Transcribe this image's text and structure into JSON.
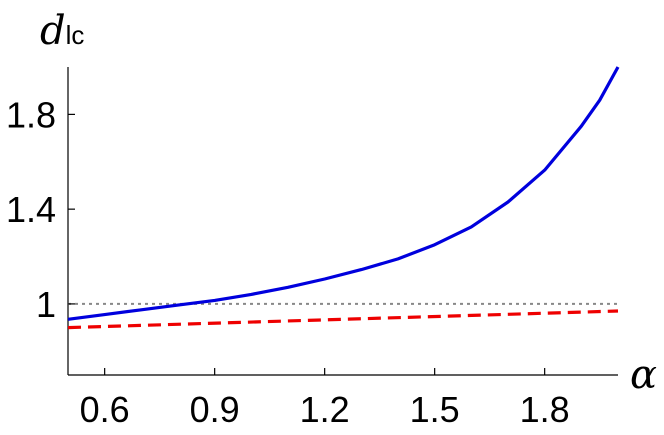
{
  "chart_data": {
    "type": "line",
    "title": "",
    "xlabel": "α",
    "ylabel_main": "d",
    "ylabel_sub": "lc",
    "xlim": [
      0.5,
      2.0
    ],
    "ylim": [
      0.7,
      2.0
    ],
    "x_ticks": [
      0.6,
      0.9,
      1.2,
      1.5,
      1.8
    ],
    "x_tick_labels": [
      "0.6",
      "0.9",
      "1.2",
      "1.5",
      "1.8"
    ],
    "y_ticks": [
      1.0,
      1.4,
      1.8
    ],
    "y_tick_labels": [
      "1",
      "1.4",
      "1.8"
    ],
    "grid": false,
    "series": [
      {
        "style": "solid",
        "color": "#0000dd",
        "x": [
          0.5,
          0.6,
          0.7,
          0.8,
          0.9,
          1.0,
          1.1,
          1.2,
          1.3,
          1.4,
          1.5,
          1.6,
          1.7,
          1.8,
          1.9,
          1.95,
          2.0
        ],
        "y": [
          0.935,
          0.955,
          0.975,
          0.995,
          1.015,
          1.04,
          1.07,
          1.105,
          1.145,
          1.19,
          1.25,
          1.325,
          1.43,
          1.565,
          1.75,
          1.86,
          2.0
        ]
      },
      {
        "style": "dashed",
        "color": "#ee0000",
        "x": [
          0.5,
          2.0
        ],
        "y": [
          0.9,
          0.97
        ]
      },
      {
        "style": "dotted",
        "color": "#888888",
        "x": [
          0.5,
          2.0
        ],
        "y": [
          1.0,
          1.0
        ]
      }
    ]
  }
}
